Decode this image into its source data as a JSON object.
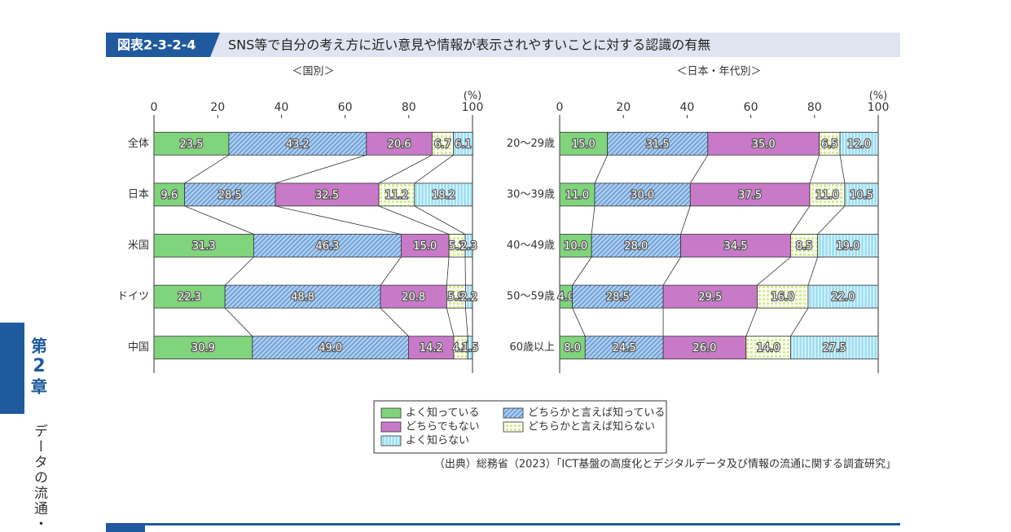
{
  "header": {
    "figure_label": "図表2-3-2-4",
    "title": "SNS等で自分の考え方に近い意見や情報が表示されやすいことに対する認識の有無"
  },
  "sidebar": {
    "chapter_prefix": "第",
    "chapter_number": "2",
    "chapter_suffix": "章",
    "section": "データの流通・活"
  },
  "legend": [
    {
      "name": "よく知っている",
      "color": "#7fd47c",
      "pattern": "solid"
    },
    {
      "name": "どちらかと言えば知っている",
      "color": "#a9cdf1",
      "pattern": "diagonal"
    },
    {
      "name": "どちらでもない",
      "color": "#c87ac8",
      "pattern": "solid"
    },
    {
      "name": "どちらかと言えば知らない",
      "color": "#d6ec8c",
      "pattern": "grid"
    },
    {
      "name": "よく知らない",
      "color": "#9fdff4",
      "pattern": "vertical"
    }
  ],
  "chart_data": [
    {
      "type": "stacked_bar",
      "subtitle": "＜国別＞",
      "unit_label": "(%)",
      "categories": [
        "全体",
        "日本",
        "米国",
        "ドイツ",
        "中国"
      ],
      "xlim": [
        0,
        100
      ],
      "xticks": [
        0,
        20,
        40,
        60,
        80,
        100
      ],
      "series": [
        {
          "values": [
            23.5,
            9.6,
            31.3,
            22.3,
            30.9
          ],
          "value_labels": [
            "23.5",
            "9.6",
            "31.3",
            "22.3",
            "30.9"
          ]
        },
        {
          "values": [
            43.2,
            28.5,
            46.3,
            48.8,
            49.0
          ],
          "value_labels": [
            "43.2",
            "28.5",
            "46.3",
            "48.8",
            "49.0"
          ]
        },
        {
          "values": [
            20.6,
            32.5,
            15.0,
            20.8,
            14.2
          ],
          "value_labels": [
            "20.6",
            "32.5",
            "15.0",
            "20.8",
            "14.2"
          ]
        },
        {
          "values": [
            6.7,
            11.2,
            5.1,
            5.9,
            4.4
          ],
          "value_labels": [
            "6.7",
            "11.2",
            "5.1",
            "5.9",
            "4.4"
          ]
        },
        {
          "values": [
            6.1,
            18.2,
            2.3,
            2.2,
            1.5
          ],
          "value_labels": [
            "6.1",
            "18.2",
            "2.3",
            "2.2",
            "1.5"
          ]
        }
      ]
    },
    {
      "type": "stacked_bar",
      "subtitle": "＜日本・年代別＞",
      "unit_label": "(%)",
      "categories": [
        "20～29歳",
        "30～39歳",
        "40～49歳",
        "50～59歳",
        "60歳以上"
      ],
      "xlim": [
        0,
        100
      ],
      "xticks": [
        0,
        20,
        40,
        60,
        80,
        100
      ],
      "series": [
        {
          "values": [
            15.0,
            11.0,
            10.0,
            4.0,
            8.0
          ],
          "value_labels": [
            "15.0",
            "11.0",
            "10.0",
            "4.0",
            "8.0"
          ]
        },
        {
          "values": [
            31.5,
            30.0,
            28.0,
            28.5,
            24.5
          ],
          "value_labels": [
            "31.5",
            "30.0",
            "28.0",
            "28.5",
            "24.5"
          ]
        },
        {
          "values": [
            35.0,
            37.5,
            34.5,
            29.5,
            26.0
          ],
          "value_labels": [
            "35.0",
            "37.5",
            "34.5",
            "29.5",
            "26.0"
          ]
        },
        {
          "values": [
            6.5,
            11.0,
            8.5,
            16.0,
            14.0
          ],
          "value_labels": [
            "6.5",
            "11.0",
            "8.5",
            "16.0",
            "14.0"
          ]
        },
        {
          "values": [
            12.0,
            10.5,
            19.0,
            22.0,
            27.5
          ],
          "value_labels": [
            "12.0",
            "10.5",
            "19.0",
            "22.0",
            "27.5"
          ]
        }
      ]
    }
  ],
  "source": "（出典）総務省（2023）「ICT基盤の高度化とデジタルデータ及び情報の流通に関する調査研究」"
}
